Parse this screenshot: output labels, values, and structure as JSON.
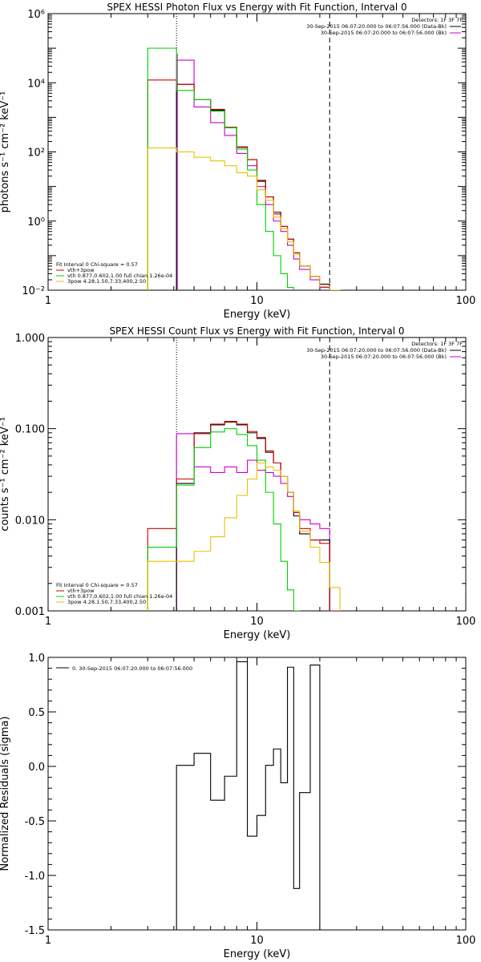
{
  "colors": {
    "black": "#000000",
    "red": "#cc0000",
    "green": "#00d000",
    "yellow": "#e6c200",
    "magenta": "#cc00cc",
    "background": "#ffffff"
  },
  "chart_data": [
    {
      "type": "line",
      "title": "SPEX HESSI Photon Flux vs Energy with Fit Function, Interval 0",
      "xlabel": "Energy (keV)",
      "ylabel": "photons s⁻¹ cm⁻² keV⁻¹",
      "xscale": "log",
      "yscale": "log",
      "xlim": [
        1,
        100
      ],
      "ylim": [
        0.01,
        1000000
      ],
      "xticks": [
        {
          "v": 1,
          "l": "1"
        },
        {
          "v": 10,
          "l": "10"
        },
        {
          "v": 100,
          "l": "100"
        }
      ],
      "yticks": [
        {
          "v": 0.01,
          "l": "10⁻²"
        },
        {
          "v": 1,
          "l": "10⁰"
        },
        {
          "v": 100,
          "l": "10²"
        },
        {
          "v": 10000,
          "l": "10⁴"
        },
        {
          "v": 1000000,
          "l": "10⁶"
        }
      ],
      "vlines": [
        {
          "x": 4.12,
          "style": "dotted"
        },
        {
          "x": 22.3,
          "style": "dashed"
        }
      ],
      "magenta_vline": 4.12,
      "legend_top": {
        "header": "Detectors: 1F 3F 7F",
        "entries": [
          {
            "label": "30-Sep-2015 06:07:20.000 to 06:07:56.000 (Data-Bk)",
            "color": "black"
          },
          {
            "label": "30-Sep-2015 06:07:20.000 to 06:07:56.000 (Bk)",
            "color": "magenta"
          }
        ]
      },
      "legend_bottom": {
        "header": "Fit Interval 0   Chi-square = 0.57",
        "entries": [
          {
            "label": "vth+3pow",
            "color": "red"
          },
          {
            "label": "vth 0.877,0.602,1.00  full chian 1.26e-04",
            "color": "green"
          },
          {
            "label": "3pow 4.28,1.50,7.33,400,2.50",
            "color": "yellow"
          }
        ]
      },
      "series": [
        {
          "color": "magenta",
          "edges": [
            4.12,
            5.0,
            6.0,
            7.0,
            8.0,
            9.0,
            10.0,
            11.0,
            12.0,
            13.0,
            14.0,
            15.0,
            16.0,
            18.0,
            20.0,
            22.3
          ],
          "values": [
            45000,
            2000,
            700,
            300,
            90,
            40,
            10,
            3,
            1,
            0.5,
            0.2,
            0.08,
            0.04,
            0.02,
            0.012
          ]
        },
        {
          "color": "black",
          "edges": [
            4.12,
            5.0,
            6.0,
            7.0,
            8.0,
            9.0,
            10.0,
            11.0,
            12.0,
            13.0,
            14.0,
            15.0,
            16.0,
            18.0,
            20.0,
            22.3
          ],
          "values": [
            9000,
            3300,
            1600,
            500,
            135,
            60,
            15,
            5,
            1.8,
            0.7,
            0.3,
            0.12,
            0.05,
            0.025,
            0.015
          ]
        },
        {
          "color": "red",
          "edges": [
            3.0,
            4.12,
            5.0,
            6.0,
            7.0,
            8.0,
            9.0,
            10.0,
            11.0,
            12.0,
            13.0,
            14.0,
            15.0,
            16.0,
            18.0,
            20.0,
            22.3,
            25.0
          ],
          "values": [
            12000,
            9000,
            3300,
            1700,
            520,
            140,
            60,
            14,
            5,
            1.6,
            0.7,
            0.3,
            0.12,
            0.05,
            0.025,
            0.013,
            0.01
          ]
        },
        {
          "color": "green",
          "edges": [
            3.0,
            4.12,
            5.0,
            6.0,
            7.0,
            8.0,
            9.0,
            10.0,
            11.0,
            12.0,
            13.0,
            14.0,
            15.0,
            16.0
          ],
          "values": [
            100000,
            6000,
            3300,
            1500,
            500,
            120,
            30,
            3,
            0.5,
            0.1,
            0.03,
            0.012,
            0.006
          ]
        },
        {
          "color": "yellow",
          "edges": [
            3.0,
            4.12,
            5.0,
            6.0,
            7.0,
            8.0,
            9.0,
            10.0,
            11.0,
            12.0,
            13.0,
            14.0,
            15.0,
            16.0,
            18.0,
            20.0,
            22.3,
            25.0
          ],
          "values": [
            130,
            100,
            70,
            55,
            40,
            25,
            20,
            8,
            4,
            1.3,
            0.6,
            0.25,
            0.11,
            0.05,
            0.025,
            0.013,
            0.01
          ]
        }
      ]
    },
    {
      "type": "line",
      "title": "SPEX HESSI Count Flux vs Energy with Fit Function, Interval 0",
      "xlabel": "Energy (keV)",
      "ylabel": "counts s⁻¹ cm⁻² keV⁻¹",
      "xscale": "log",
      "yscale": "log",
      "xlim": [
        1,
        100
      ],
      "ylim": [
        0.001,
        1.0
      ],
      "xticks": [
        {
          "v": 1,
          "l": "1"
        },
        {
          "v": 10,
          "l": "10"
        },
        {
          "v": 100,
          "l": "100"
        }
      ],
      "yticks": [
        {
          "v": 0.001,
          "l": "0.001"
        },
        {
          "v": 0.01,
          "l": "0.010"
        },
        {
          "v": 0.1,
          "l": "0.100"
        },
        {
          "v": 1,
          "l": "1.000"
        }
      ],
      "vlines": [
        {
          "x": 4.12,
          "style": "dotted"
        },
        {
          "x": 22.3,
          "style": "dashed"
        }
      ],
      "legend_top": {
        "header": "Detectors: 1F 3F 7F",
        "entries": [
          {
            "label": "30-Sep-2015 06:07:20.000 to 06:07:56.000 (Data-Bk)",
            "color": "black"
          },
          {
            "label": "30-Sep-2015 06:07:20.000 to 06:07:56.000 (Bk)",
            "color": "magenta"
          }
        ]
      },
      "legend_bottom": {
        "header": "Fit Interval 0   Chi-square = 0.57",
        "entries": [
          {
            "label": "vth+3pow",
            "color": "red"
          },
          {
            "label": "vth 0.877,0.602,1.00  full chian 1.26e-04",
            "color": "green"
          },
          {
            "label": "3pow 4.28,1.50,7.33,400,2.50",
            "color": "yellow"
          }
        ]
      },
      "series": [
        {
          "color": "magenta",
          "edges": [
            4.12,
            5.0,
            6.0,
            7.0,
            8.0,
            9.0,
            10.0,
            11.0,
            12.0,
            13.0,
            14.0,
            15.0,
            16.0,
            18.0,
            20.0,
            22.3
          ],
          "values": [
            0.088,
            0.038,
            0.033,
            0.038,
            0.033,
            0.045,
            0.035,
            0.033,
            0.03,
            0.025,
            0.018,
            0.012,
            0.01,
            0.009,
            0.008
          ]
        },
        {
          "color": "black",
          "edges": [
            4.12,
            5.0,
            6.0,
            7.0,
            8.0,
            9.0,
            10.0,
            11.0,
            12.0,
            13.0,
            14.0,
            15.0,
            16.0,
            18.0,
            20.0,
            22.3
          ],
          "values": [
            0.025,
            0.09,
            0.11,
            0.118,
            0.11,
            0.09,
            0.078,
            0.055,
            0.042,
            0.03,
            0.02,
            0.011,
            0.007,
            0.006,
            0.006
          ]
        },
        {
          "color": "red",
          "edges": [
            3.0,
            4.12,
            5.0,
            6.0,
            7.0,
            8.0,
            9.0,
            10.0,
            11.0,
            12.0,
            13.0,
            14.0,
            15.0,
            16.0,
            18.0,
            20.0,
            22.3,
            25.0
          ],
          "values": [
            0.008,
            0.028,
            0.088,
            0.112,
            0.12,
            0.112,
            0.093,
            0.08,
            0.057,
            0.042,
            0.03,
            0.02,
            0.012,
            0.008,
            0.006,
            0.0055,
            0.001
          ]
        },
        {
          "color": "green",
          "edges": [
            3.0,
            4.12,
            5.0,
            6.0,
            7.0,
            8.0,
            9.0,
            10.0,
            11.0,
            12.0,
            13.0,
            14.0,
            15.0,
            16.0
          ],
          "values": [
            0.005,
            0.024,
            0.062,
            0.092,
            0.1,
            0.086,
            0.065,
            0.045,
            0.02,
            0.009,
            0.0035,
            0.0017,
            0.001
          ]
        },
        {
          "color": "yellow",
          "edges": [
            3.0,
            4.12,
            5.0,
            6.0,
            7.0,
            8.0,
            9.0,
            10.0,
            11.0,
            12.0,
            13.0,
            14.0,
            15.0,
            16.0,
            18.0,
            20.0,
            22.3,
            25.0
          ],
          "values": [
            0.0035,
            0.0035,
            0.0045,
            0.0065,
            0.0105,
            0.0185,
            0.028,
            0.042,
            0.038,
            0.035,
            0.03,
            0.02,
            0.0125,
            0.0075,
            0.005,
            0.0034,
            0.0018
          ]
        }
      ]
    },
    {
      "type": "line",
      "title": "",
      "xlabel": "Energy (keV)",
      "ylabel": "Normalized Residuals (sigma)",
      "xscale": "log",
      "yscale": "linear",
      "xlim": [
        1,
        100
      ],
      "ylim": [
        -1.5,
        1.0
      ],
      "xticks": [
        {
          "v": 1,
          "l": "1"
        },
        {
          "v": 10,
          "l": "10"
        },
        {
          "v": 100,
          "l": "100"
        }
      ],
      "yticks": [
        {
          "v": -1.5,
          "l": "-1.5"
        },
        {
          "v": -1.0,
          "l": "-1.0"
        },
        {
          "v": -0.5,
          "l": "-0.5"
        },
        {
          "v": 0.0,
          "l": "0.0"
        },
        {
          "v": 0.5,
          "l": "0.5"
        },
        {
          "v": 1.0,
          "l": "1.0"
        }
      ],
      "legend_top": {
        "header": "",
        "entries": [
          {
            "label": "0. 30-Sep-2015 06:07:20.000 to 06:07:56.000",
            "color": "black"
          }
        ]
      },
      "series": [
        {
          "color": "black",
          "edges": [
            4.12,
            5.0,
            6.0,
            7.0,
            8.0,
            9.0,
            10.0,
            11.0,
            12.0,
            13.0,
            14.0,
            15.0,
            16.0,
            18.0,
            20.0,
            22.3
          ],
          "values": [
            0.01,
            0.12,
            -0.31,
            -0.09,
            0.96,
            -0.64,
            -0.45,
            0.01,
            0.16,
            -0.15,
            0.91,
            -1.12,
            -0.24,
            0.93,
            -1.5
          ]
        }
      ]
    }
  ]
}
